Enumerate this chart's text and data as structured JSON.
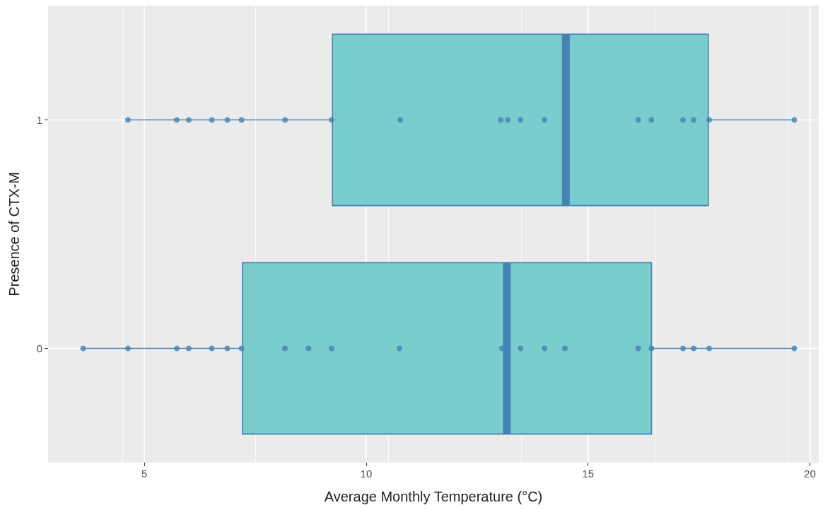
{
  "chart_data": {
    "type": "box",
    "orientation": "horizontal",
    "xlabel": "Average Monthly Temperature (°C)",
    "ylabel": "Presence of CTX-M",
    "categories": [
      "1",
      "0"
    ],
    "boxes": [
      {
        "low": 4.63,
        "q1": 9.24,
        "median": 14.5,
        "q3": 17.71,
        "high": 19.67
      },
      {
        "low": 3.62,
        "q1": 7.21,
        "median": 13.17,
        "q3": 16.43,
        "high": 19.67
      }
    ],
    "color": "#79cdcd",
    "series": [
      {
        "type": "scatter",
        "color": "#4682b4",
        "x": [
          "1",
          "1",
          "1",
          "1",
          "1",
          "1",
          "1",
          "1",
          "1",
          "1",
          "1",
          "1",
          "1",
          "1",
          "1",
          "1",
          "1",
          "1",
          "1"
        ],
        "values": [
          4.63,
          5.73,
          6.0,
          6.52,
          6.87,
          7.19,
          8.17,
          9.22,
          10.77,
          13.03,
          13.19,
          13.48,
          14.02,
          16.13,
          16.43,
          17.14,
          17.38,
          17.73,
          19.65
        ]
      },
      {
        "type": "scatter",
        "color": "#4682b4",
        "x": [
          "0",
          "0",
          "0",
          "0",
          "0",
          "0",
          "0",
          "0",
          "0",
          "0",
          "0",
          "0",
          "0",
          "0",
          "0",
          "0",
          "0",
          "0",
          "0",
          "0",
          "0"
        ],
        "values": [
          3.62,
          4.63,
          5.73,
          6.0,
          6.52,
          6.87,
          7.19,
          8.17,
          8.7,
          9.22,
          10.75,
          13.06,
          13.48,
          14.02,
          14.48,
          16.13,
          16.43,
          17.14,
          17.38,
          17.73,
          19.65
        ]
      }
    ],
    "xlim": [
      2.83,
      20.2
    ],
    "xticks": [
      5,
      10,
      15,
      20
    ],
    "grid": true,
    "marker": "circle"
  }
}
